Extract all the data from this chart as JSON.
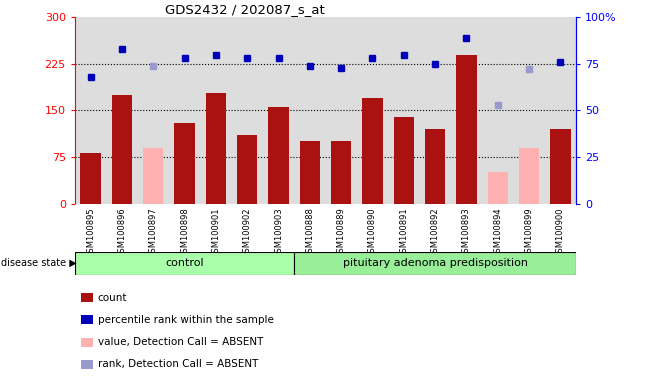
{
  "title": "GDS2432 / 202087_s_at",
  "samples": [
    "GSM100895",
    "GSM100896",
    "GSM100897",
    "GSM100898",
    "GSM100901",
    "GSM100902",
    "GSM100903",
    "GSM100888",
    "GSM100889",
    "GSM100890",
    "GSM100891",
    "GSM100892",
    "GSM100893",
    "GSM100894",
    "GSM100899",
    "GSM100900"
  ],
  "count_values": [
    82,
    175,
    null,
    130,
    178,
    110,
    155,
    100,
    100,
    170,
    140,
    120,
    240,
    null,
    null,
    120
  ],
  "count_absent": [
    null,
    null,
    90,
    null,
    null,
    null,
    null,
    null,
    null,
    null,
    null,
    null,
    null,
    50,
    90,
    null
  ],
  "rank_values": [
    68,
    83,
    null,
    78,
    80,
    78,
    78,
    74,
    73,
    78,
    80,
    75,
    89,
    null,
    null,
    76
  ],
  "rank_absent": [
    null,
    null,
    74,
    null,
    null,
    null,
    null,
    null,
    null,
    null,
    null,
    null,
    null,
    53,
    72,
    null
  ],
  "control_count": 7,
  "group1_label": "control",
  "group2_label": "pituitary adenoma predisposition",
  "ylim_left": [
    0,
    300
  ],
  "ylim_right": [
    0,
    100
  ],
  "yticks_left": [
    0,
    75,
    150,
    225,
    300
  ],
  "yticks_right": [
    0,
    25,
    50,
    75,
    100
  ],
  "bar_color_present": "#AA1111",
  "bar_color_absent": "#FFB0B0",
  "rank_color_present": "#0000BB",
  "rank_color_absent": "#9999CC",
  "group1_color": "#AAFFAA",
  "group2_color": "#99EE99",
  "plot_bg_color": "#DDDDDD",
  "legend": [
    {
      "label": "count",
      "color": "#AA1111"
    },
    {
      "label": "percentile rank within the sample",
      "color": "#0000BB"
    },
    {
      "label": "value, Detection Call = ABSENT",
      "color": "#FFB0B0"
    },
    {
      "label": "rank, Detection Call = ABSENT",
      "color": "#9999CC"
    }
  ]
}
